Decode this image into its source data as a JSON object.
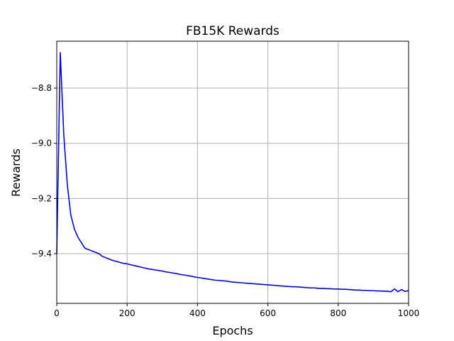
{
  "chart_data": {
    "type": "line",
    "title": "FB15K Rewards",
    "xlabel": "Epochs",
    "ylabel": "Rewards",
    "xlim": [
      0,
      1000
    ],
    "ylim": [
      -9.58,
      -8.63
    ],
    "xticks": [
      0,
      200,
      400,
      600,
      800,
      1000
    ],
    "xtick_labels": [
      "0",
      "200",
      "400",
      "600",
      "800",
      "1000"
    ],
    "yticks": [
      -8.8,
      -9.0,
      -9.2,
      -9.4
    ],
    "ytick_labels": [
      "−8.8",
      "−9.0",
      "−9.2",
      "−9.4"
    ],
    "grid": true,
    "series": [
      {
        "color": "#0000ff",
        "x": [
          0,
          10,
          20,
          30,
          40,
          50,
          60,
          70,
          80,
          90,
          100,
          110,
          120,
          130,
          140,
          150,
          160,
          170,
          180,
          190,
          200,
          210,
          220,
          230,
          240,
          250,
          260,
          270,
          280,
          290,
          300,
          310,
          320,
          330,
          340,
          350,
          360,
          370,
          380,
          390,
          400,
          410,
          420,
          430,
          440,
          450,
          460,
          470,
          480,
          490,
          500,
          510,
          520,
          530,
          540,
          550,
          560,
          570,
          580,
          590,
          600,
          610,
          620,
          630,
          640,
          650,
          660,
          670,
          680,
          690,
          700,
          710,
          720,
          730,
          740,
          750,
          760,
          770,
          780,
          790,
          800,
          810,
          820,
          830,
          840,
          850,
          860,
          870,
          880,
          890,
          900,
          910,
          920,
          930,
          940,
          950,
          960,
          970,
          980,
          990,
          1000
        ],
        "y": [
          -9.4,
          -8.67,
          -8.97,
          -9.15,
          -9.26,
          -9.31,
          -9.34,
          -9.36,
          -9.38,
          -9.385,
          -9.39,
          -9.395,
          -9.4,
          -9.41,
          -9.415,
          -9.42,
          -9.425,
          -9.428,
          -9.432,
          -9.435,
          -9.437,
          -9.44,
          -9.443,
          -9.446,
          -9.449,
          -9.452,
          -9.455,
          -9.457,
          -9.459,
          -9.461,
          -9.463,
          -9.466,
          -9.468,
          -9.47,
          -9.472,
          -9.475,
          -9.477,
          -9.479,
          -9.481,
          -9.484,
          -9.486,
          -9.488,
          -9.49,
          -9.492,
          -9.494,
          -9.496,
          -9.497,
          -9.498,
          -9.499,
          -9.501,
          -9.503,
          -9.504,
          -9.505,
          -9.506,
          -9.507,
          -9.508,
          -9.509,
          -9.51,
          -9.511,
          -9.512,
          -9.513,
          -9.514,
          -9.515,
          -9.516,
          -9.517,
          -9.518,
          -9.519,
          -9.52,
          -9.52,
          -9.521,
          -9.522,
          -9.523,
          -9.524,
          -9.524,
          -9.525,
          -9.526,
          -9.526,
          -9.527,
          -9.527,
          -9.528,
          -9.528,
          -9.529,
          -9.529,
          -9.53,
          -9.531,
          -9.532,
          -9.532,
          -9.533,
          -9.533,
          -9.534,
          -9.534,
          -9.535,
          -9.535,
          -9.536,
          -9.536,
          -9.538,
          -9.528,
          -9.538,
          -9.53,
          -9.537,
          -9.534
        ]
      }
    ]
  }
}
